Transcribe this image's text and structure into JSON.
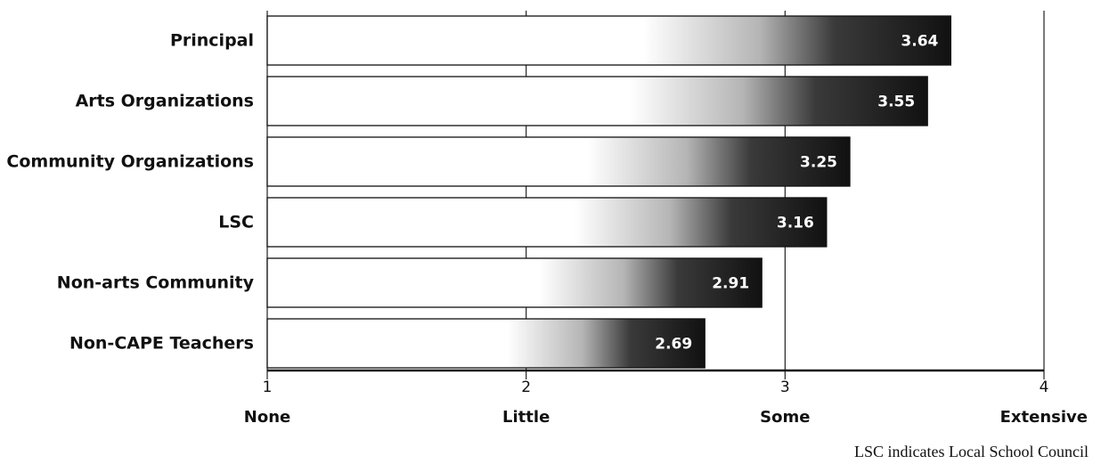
{
  "chart_data": {
    "type": "bar",
    "orientation": "horizontal",
    "categories": [
      "Principal",
      "Arts Organizations",
      "Community Organizations",
      "LSC",
      "Non-arts Community",
      "Non-CAPE Teachers"
    ],
    "values": [
      3.64,
      3.55,
      3.25,
      3.16,
      2.91,
      2.69
    ],
    "value_labels": [
      "3.64",
      "3.55",
      "3.25",
      "3.16",
      "2.91",
      "2.69"
    ],
    "xlim": [
      1,
      4
    ],
    "x_ticks": [
      {
        "value": 1,
        "number": "1",
        "word": "None"
      },
      {
        "value": 2,
        "number": "2",
        "word": "Little"
      },
      {
        "value": 3,
        "number": "3",
        "word": "Some"
      },
      {
        "value": 4,
        "number": "4",
        "word": "Extensive"
      }
    ],
    "grid": true,
    "bar_color": "#111111",
    "bar_fade_color": "#ffffff"
  },
  "footnote": "LSC indicates Local School Council"
}
